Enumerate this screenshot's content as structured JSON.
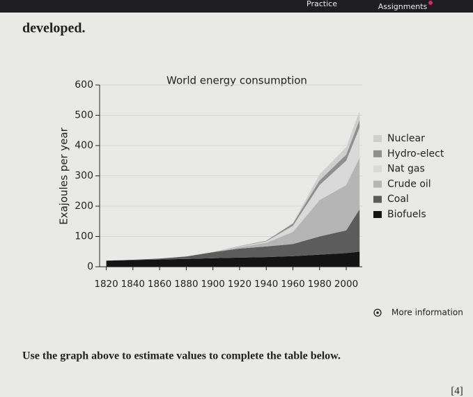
{
  "header": {
    "nav": [
      "Practice",
      "Assignments"
    ]
  },
  "intro": "developed.",
  "chart_data": {
    "type": "stacked_area",
    "title": "World energy consumption",
    "y_label": "Exajoules per year",
    "x": [
      1820,
      1840,
      1860,
      1880,
      1900,
      1920,
      1940,
      1960,
      1980,
      2000,
      2010
    ],
    "series": [
      {
        "name": "Biofuels",
        "color": "#141414",
        "values": [
          20,
          22,
          24,
          26,
          28,
          30,
          32,
          35,
          40,
          45,
          50
        ]
      },
      {
        "name": "Coal",
        "color": "#5c5c5c",
        "values": [
          0,
          1,
          3,
          8,
          20,
          30,
          35,
          40,
          60,
          75,
          140
        ]
      },
      {
        "name": "Crude oil",
        "color": "#b5b5b5",
        "values": [
          0,
          0,
          0,
          0,
          1,
          5,
          12,
          40,
          120,
          150,
          170
        ]
      },
      {
        "name": "Nat gas",
        "color": "#d9d9d9",
        "values": [
          0,
          0,
          0,
          0,
          0,
          2,
          5,
          20,
          50,
          80,
          100
        ]
      },
      {
        "name": "Hydro-elect",
        "color": "#8f8f8f",
        "values": [
          0,
          0,
          0,
          0,
          0,
          1,
          2,
          8,
          15,
          20,
          25
        ]
      },
      {
        "name": "Nuclear",
        "color": "#cfcfcf",
        "values": [
          0,
          0,
          0,
          0,
          0,
          0,
          0,
          1,
          20,
          25,
          30
        ]
      }
    ],
    "xlim": [
      1815,
      2012
    ],
    "ylim": [
      0,
      600
    ],
    "xticks": [
      1820,
      1840,
      1860,
      1880,
      1900,
      1920,
      1940,
      1960,
      1980,
      2000
    ],
    "yticks": [
      0,
      100,
      200,
      300,
      400,
      500,
      600
    ],
    "grid": true
  },
  "more_info": "More information",
  "instruction": "Use the graph above to estimate values to complete the table below.",
  "marks": "[4]"
}
